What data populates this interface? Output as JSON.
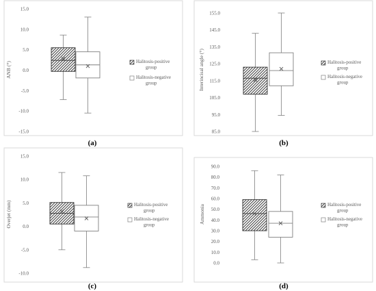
{
  "colors": {
    "frame": "#d9d9d9",
    "axis_text": "#595959",
    "box_line": "#7f7f7f",
    "positive_fill": "hatched",
    "negative_fill": "#ffffff"
  },
  "chart_data": [
    {
      "panel_label": "(a)",
      "type": "box",
      "ylabel": "ANB (°)",
      "ylim": [
        -15,
        15
      ],
      "yticks": [
        "15.0",
        "10.0",
        "5.0",
        "0.0",
        "-5.0",
        "-10.0",
        "-15.0"
      ],
      "ytick_values": [
        15,
        10,
        5,
        0,
        -5,
        -10,
        -15
      ],
      "legend": [
        "Halitosis-positive group",
        "Halitosis-negative group"
      ],
      "legend_lines": [
        [
          "Halitosis-positive",
          "group"
        ],
        [
          "Halitosis-negative",
          "group"
        ]
      ],
      "series": [
        {
          "name": "Halitosis-positive group",
          "min": -7.2,
          "q1": -0.3,
          "median": 2.4,
          "q3": 5.5,
          "max": 8.6,
          "mean": 2.8
        },
        {
          "name": "Halitosis-negative group",
          "min": -10.5,
          "q1": -1.9,
          "median": 1.3,
          "q3": 4.5,
          "max": 13.0,
          "mean": 1.0
        }
      ]
    },
    {
      "panel_label": "(b)",
      "type": "box",
      "ylabel": "Interincisal angle (°)",
      "ylim": [
        85,
        155
      ],
      "yticks": [
        "155.0",
        "145.0",
        "135.0",
        "125.0",
        "115.0",
        "105.0",
        "95.0",
        "85.0"
      ],
      "ytick_values": [
        155,
        145,
        135,
        125,
        115,
        105,
        95,
        85
      ],
      "legend": [
        "Halitosis-positive group",
        "Halitosis-negative group"
      ],
      "legend_lines": [
        [
          "Halitosis-positive",
          "group"
        ],
        [
          "Halitosis-negative",
          "group"
        ]
      ],
      "series": [
        {
          "name": "Halitosis-positive group",
          "min": 85.0,
          "q1": 107.0,
          "median": 116.5,
          "q3": 123.0,
          "max": 143.0,
          "mean": 115.5
        },
        {
          "name": "Halitosis-negative group",
          "min": 94.5,
          "q1": 112.0,
          "median": 121.0,
          "q3": 131.5,
          "max": 155.0,
          "mean": 122.0
        }
      ]
    },
    {
      "panel_label": "(c)",
      "type": "box",
      "ylabel": "Overjet (mm)",
      "ylim": [
        -10,
        15
      ],
      "yticks": [
        "15.0",
        "10.0",
        "5.0",
        "0.0",
        "-5.0",
        "-10.0"
      ],
      "ytick_values": [
        15,
        10,
        5,
        0,
        -5,
        -10
      ],
      "legend": [
        "Halitosis-positive group",
        "Halitosis-negative group"
      ],
      "legend_lines": [
        [
          "Halitosis-positive",
          "group"
        ],
        [
          "Halitosis-negative",
          "group"
        ]
      ],
      "series": [
        {
          "name": "Halitosis-positive group",
          "min": -5.0,
          "q1": 0.5,
          "median": 2.8,
          "q3": 5.1,
          "max": 11.5,
          "mean": 3.2
        },
        {
          "name": "Halitosis-negative group",
          "min": -8.8,
          "q1": -1.0,
          "median": 2.0,
          "q3": 4.5,
          "max": 10.8,
          "mean": 1.7
        }
      ]
    },
    {
      "panel_label": "(d)",
      "type": "box",
      "ylabel": "Ammonia",
      "ylim": [
        0,
        90
      ],
      "yticks": [
        "90.0",
        "80.0",
        "70.0",
        "60.0",
        "50.0",
        "40.0",
        "30.0",
        "20.0",
        "10.0",
        "0.0"
      ],
      "ytick_values": [
        90,
        80,
        70,
        60,
        50,
        40,
        30,
        20,
        10,
        0
      ],
      "legend": [
        "Halitosis-positive group",
        "Halitosis-negative group"
      ],
      "legend_lines": [
        [
          "Halitosis-positive",
          "group"
        ],
        [
          "Halitosis-negative",
          "group"
        ]
      ],
      "series": [
        {
          "name": "Halitosis-positive group",
          "min": 3.0,
          "q1": 30.0,
          "median": 46.0,
          "q3": 59.0,
          "max": 86.0,
          "mean": 46.0
        },
        {
          "name": "Halitosis-negative group",
          "min": 0.0,
          "q1": 24.0,
          "median": 37.0,
          "q3": 48.0,
          "max": 82.0,
          "mean": 37.0
        }
      ]
    }
  ]
}
